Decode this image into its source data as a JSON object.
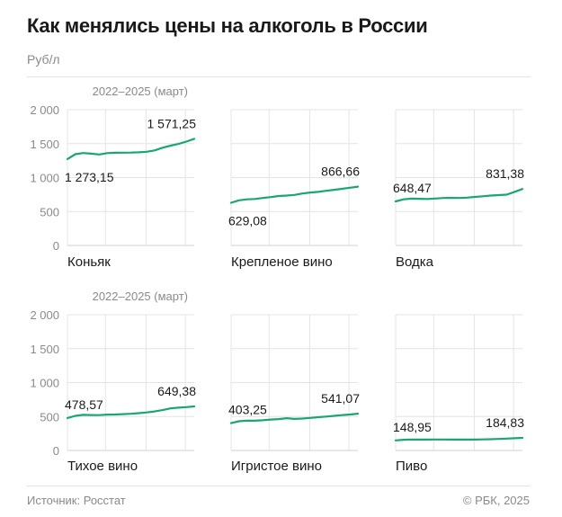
{
  "header": {
    "title": "Как менялись цены на алкоголь в России",
    "unit": "Руб/л"
  },
  "footer": {
    "source": "Источник: Росстат",
    "copyright": "© РБК, 2025"
  },
  "colors": {
    "line": "#1aa672",
    "grid": "#e4e4e4",
    "text": "#1a1a1a",
    "muted": "#8a8a8a"
  },
  "chart_data": [
    {
      "type": "line",
      "title": "Коньяк",
      "period_label": "2022–2025 (март)",
      "yticks": [
        "2 000",
        "1 500",
        "1 000",
        "500",
        "0"
      ],
      "ylim": [
        0,
        2000
      ],
      "start_label": "1 273,15",
      "end_label": "1 571,25",
      "values": [
        1273.15,
        1345,
        1362,
        1352,
        1340,
        1360,
        1365,
        1367,
        1368,
        1372,
        1380,
        1400,
        1440,
        1470,
        1495,
        1530,
        1571.25
      ]
    },
    {
      "type": "line",
      "title": "Крепленое вино",
      "period_label": "",
      "yticks": [],
      "ylim": [
        0,
        2000
      ],
      "start_label": "629,08",
      "end_label": "866,66",
      "values": [
        629.08,
        665,
        680,
        685,
        700,
        712,
        728,
        735,
        745,
        765,
        780,
        790,
        805,
        820,
        835,
        850,
        866.66
      ]
    },
    {
      "type": "line",
      "title": "Водка",
      "period_label": "",
      "yticks": [],
      "ylim": [
        0,
        2000
      ],
      "start_label": "648,47",
      "end_label": "831,38",
      "values": [
        648.47,
        680,
        690,
        688,
        685,
        692,
        700,
        702,
        700,
        705,
        715,
        725,
        735,
        742,
        748,
        790,
        831.38
      ]
    },
    {
      "type": "line",
      "title": "Тихое вино",
      "period_label": "2022–2025 (март)",
      "yticks": [
        "2 000",
        "1 500",
        "1 000",
        "500",
        "0"
      ],
      "ylim": [
        0,
        2000
      ],
      "start_label": "478,57",
      "end_label": "649,38",
      "values": [
        478.57,
        510,
        525,
        522,
        520,
        528,
        530,
        535,
        540,
        550,
        560,
        575,
        595,
        620,
        630,
        638,
        649.38
      ]
    },
    {
      "type": "line",
      "title": "Игристое вино",
      "period_label": "",
      "yticks": [],
      "ylim": [
        0,
        2000
      ],
      "start_label": "403,25",
      "end_label": "541,07",
      "values": [
        403.25,
        430,
        440,
        438,
        445,
        455,
        462,
        475,
        465,
        470,
        480,
        490,
        500,
        510,
        520,
        530,
        541.07
      ]
    },
    {
      "type": "line",
      "title": "Пиво",
      "period_label": "",
      "yticks": [],
      "ylim": [
        0,
        2000
      ],
      "start_label": "148,95",
      "end_label": "184,83",
      "values": [
        148.95,
        158,
        162,
        160,
        160,
        162,
        161,
        160,
        160,
        161,
        160,
        163,
        165,
        170,
        175,
        180,
        184.83
      ]
    }
  ]
}
